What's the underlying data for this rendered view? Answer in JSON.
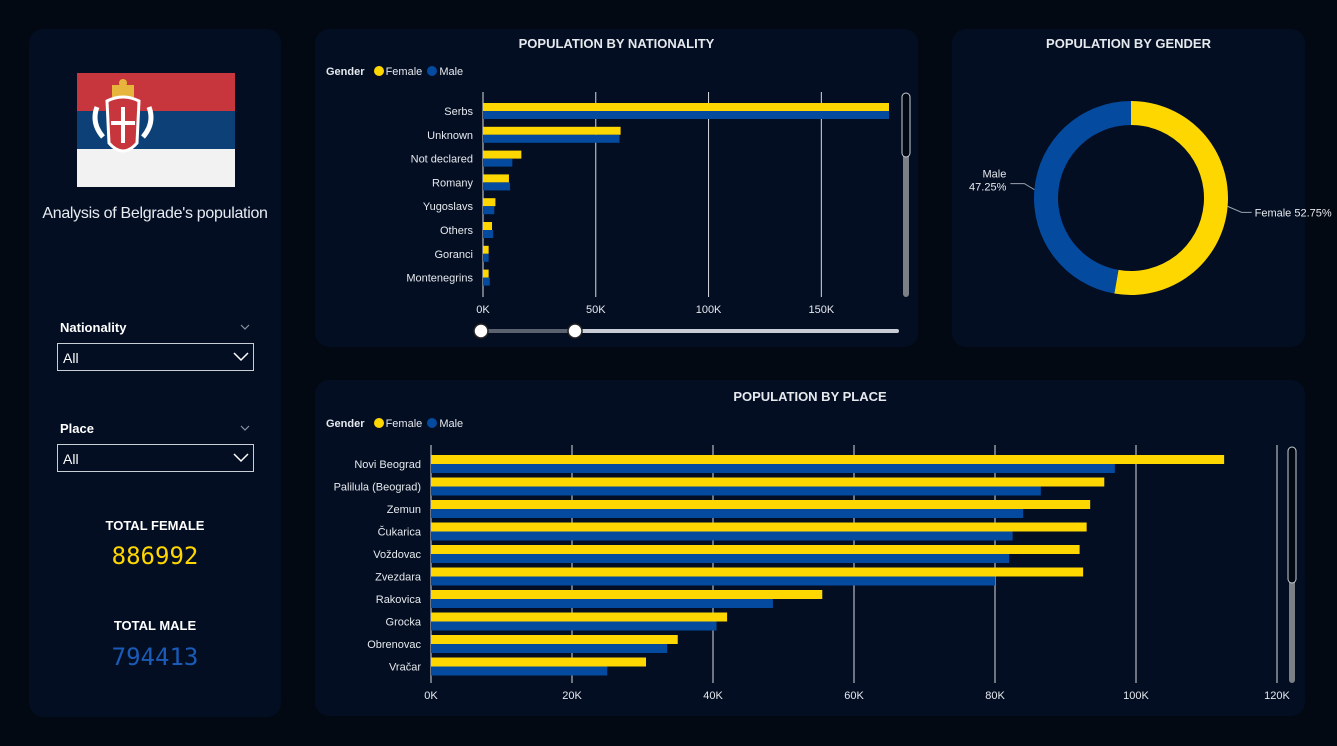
{
  "colors": {
    "female": "#ffd700",
    "male": "#044a9f",
    "grid": "#ffffff",
    "background": "#020913",
    "panel": "#030e22"
  },
  "sidebar": {
    "title": "Analysis of Belgrade's population",
    "flag_icon": "serbia-flag-icon",
    "nationality_label": "Nationality",
    "nationality_value": "All",
    "place_label": "Place",
    "place_value": "All",
    "total_female_label": "TOTAL FEMALE",
    "total_female_value": "886992",
    "total_male_label": "TOTAL MALE",
    "total_male_value": "794413"
  },
  "legend": {
    "title": "Gender",
    "female": "Female",
    "male": "Male"
  },
  "chart_data": [
    {
      "type": "bar",
      "orientation": "horizontal",
      "title": "POPULATION BY NATIONALITY",
      "categories": [
        "Serbs",
        "Unknown",
        "Not declared",
        "Romany",
        "Yugoslavs",
        "Others",
        "Goranci",
        "Montenegrins"
      ],
      "series": [
        {
          "name": "Female",
          "values": [
            180000,
            61000,
            17000,
            11500,
            5500,
            4000,
            2500,
            2500
          ]
        },
        {
          "name": "Male",
          "values": [
            180000,
            60500,
            13000,
            12000,
            5000,
            4500,
            2500,
            3000
          ]
        }
      ],
      "xlim": [
        0,
        180000
      ],
      "ticks": [
        0,
        50000,
        100000,
        150000
      ],
      "tick_labels": [
        "0K",
        "50K",
        "100K",
        "150K"
      ],
      "grid": true,
      "legend_position": "top-left"
    },
    {
      "type": "pie",
      "donut": true,
      "title": "POPULATION BY GENDER",
      "slices": [
        {
          "label": "Female",
          "value": 52.75,
          "text": "Female 52.75%"
        },
        {
          "label": "Male",
          "value": 47.25,
          "text": "Male",
          "text2": "47.25%"
        }
      ]
    },
    {
      "type": "bar",
      "orientation": "horizontal",
      "title": "POPULATION BY PLACE",
      "categories": [
        "Novi Beograd",
        "Palilula (Beograd)",
        "Zemun",
        "Čukarica",
        "Voždovac",
        "Zvezdara",
        "Rakovica",
        "Grocka",
        "Obrenovac",
        "Vračar"
      ],
      "series": [
        {
          "name": "Female",
          "values": [
            112500,
            95500,
            93500,
            93000,
            92000,
            92500,
            55500,
            42000,
            35000,
            30500
          ]
        },
        {
          "name": "Male",
          "values": [
            97000,
            86500,
            84000,
            82500,
            82000,
            80000,
            48500,
            40500,
            33500,
            25000
          ]
        }
      ],
      "xlim": [
        0,
        120000
      ],
      "ticks": [
        0,
        20000,
        40000,
        60000,
        80000,
        100000,
        120000
      ],
      "tick_labels": [
        "0K",
        "20K",
        "40K",
        "60K",
        "80K",
        "100K",
        "120K"
      ],
      "grid": true,
      "legend_position": "top-left"
    }
  ]
}
